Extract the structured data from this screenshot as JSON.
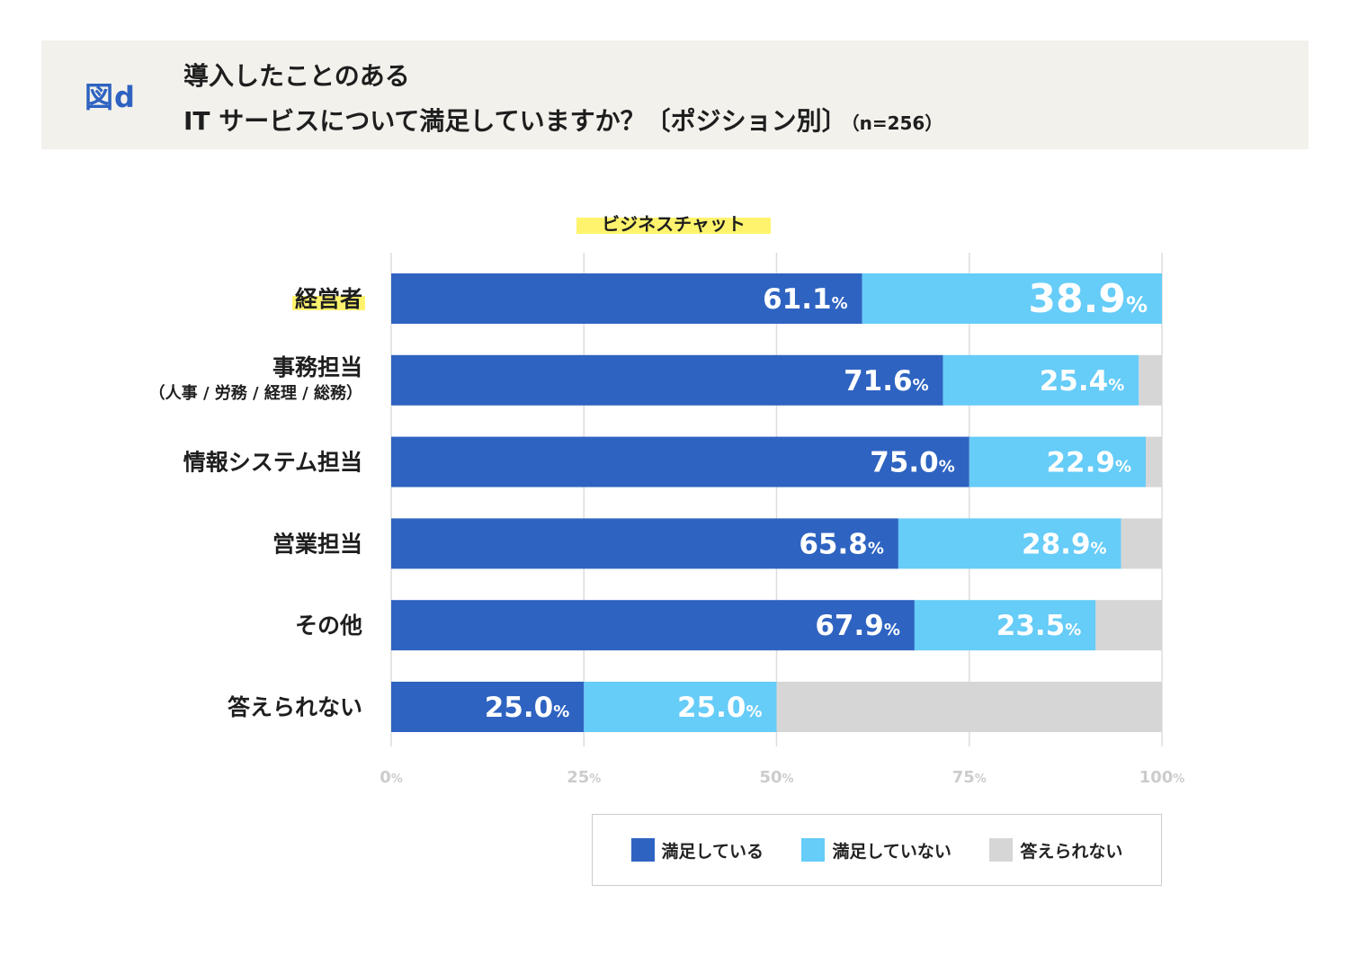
{
  "header": {
    "fig_label": "図d",
    "title_line1": "導入したことのある",
    "title_line2": "IT サービスについて満足していますか？〔ポジション別〕",
    "title_n": "（n=256）"
  },
  "subtitle": "ビジネスチャット",
  "colors": {
    "satisfied": "#2e63c1",
    "unsatisfied": "#66ccf8",
    "no_answer": "#d6d6d6",
    "grid": "#dddddd",
    "axis_label": "#cccccc",
    "highlight": "#fff36d"
  },
  "chart_data": {
    "type": "bar",
    "orientation": "horizontal",
    "stacked": true,
    "title": "ビジネスチャット",
    "categories": [
      {
        "label": "経営者",
        "sub": "",
        "highlight": true
      },
      {
        "label": "事務担当",
        "sub": "（人事 / 労務 / 経理 / 総務）",
        "highlight": false
      },
      {
        "label": "情報システム担当",
        "sub": "",
        "highlight": false
      },
      {
        "label": "営業担当",
        "sub": "",
        "highlight": false
      },
      {
        "label": "その他",
        "sub": "",
        "highlight": false
      },
      {
        "label": "答えられない",
        "sub": "",
        "highlight": false
      }
    ],
    "series": [
      {
        "name": "満足している",
        "values": [
          61.1,
          71.6,
          75.0,
          65.8,
          67.9,
          25.0
        ],
        "labels": [
          "61.1",
          "71.6",
          "75.0",
          "65.8",
          "67.9",
          "25.0"
        ]
      },
      {
        "name": "満足していない",
        "values": [
          38.9,
          25.4,
          22.9,
          28.9,
          23.5,
          25.0
        ],
        "labels": [
          "38.9",
          "25.4",
          "22.9",
          "28.9",
          "23.5",
          "25.0"
        ]
      },
      {
        "name": "答えられない",
        "values": [
          0.0,
          3.0,
          2.1,
          5.3,
          8.6,
          50.0
        ],
        "labels": [
          "",
          "",
          "",
          "",
          "",
          ""
        ]
      }
    ],
    "xlim": [
      0,
      100
    ],
    "xticks": [
      "0",
      "25",
      "50",
      "75",
      "100"
    ],
    "tick_unit": "%",
    "value_unit": "%",
    "emphasized": {
      "category": 0,
      "series": 1
    }
  },
  "legend": [
    {
      "label": "満足している"
    },
    {
      "label": "満足していない"
    },
    {
      "label": "答えられない"
    }
  ]
}
